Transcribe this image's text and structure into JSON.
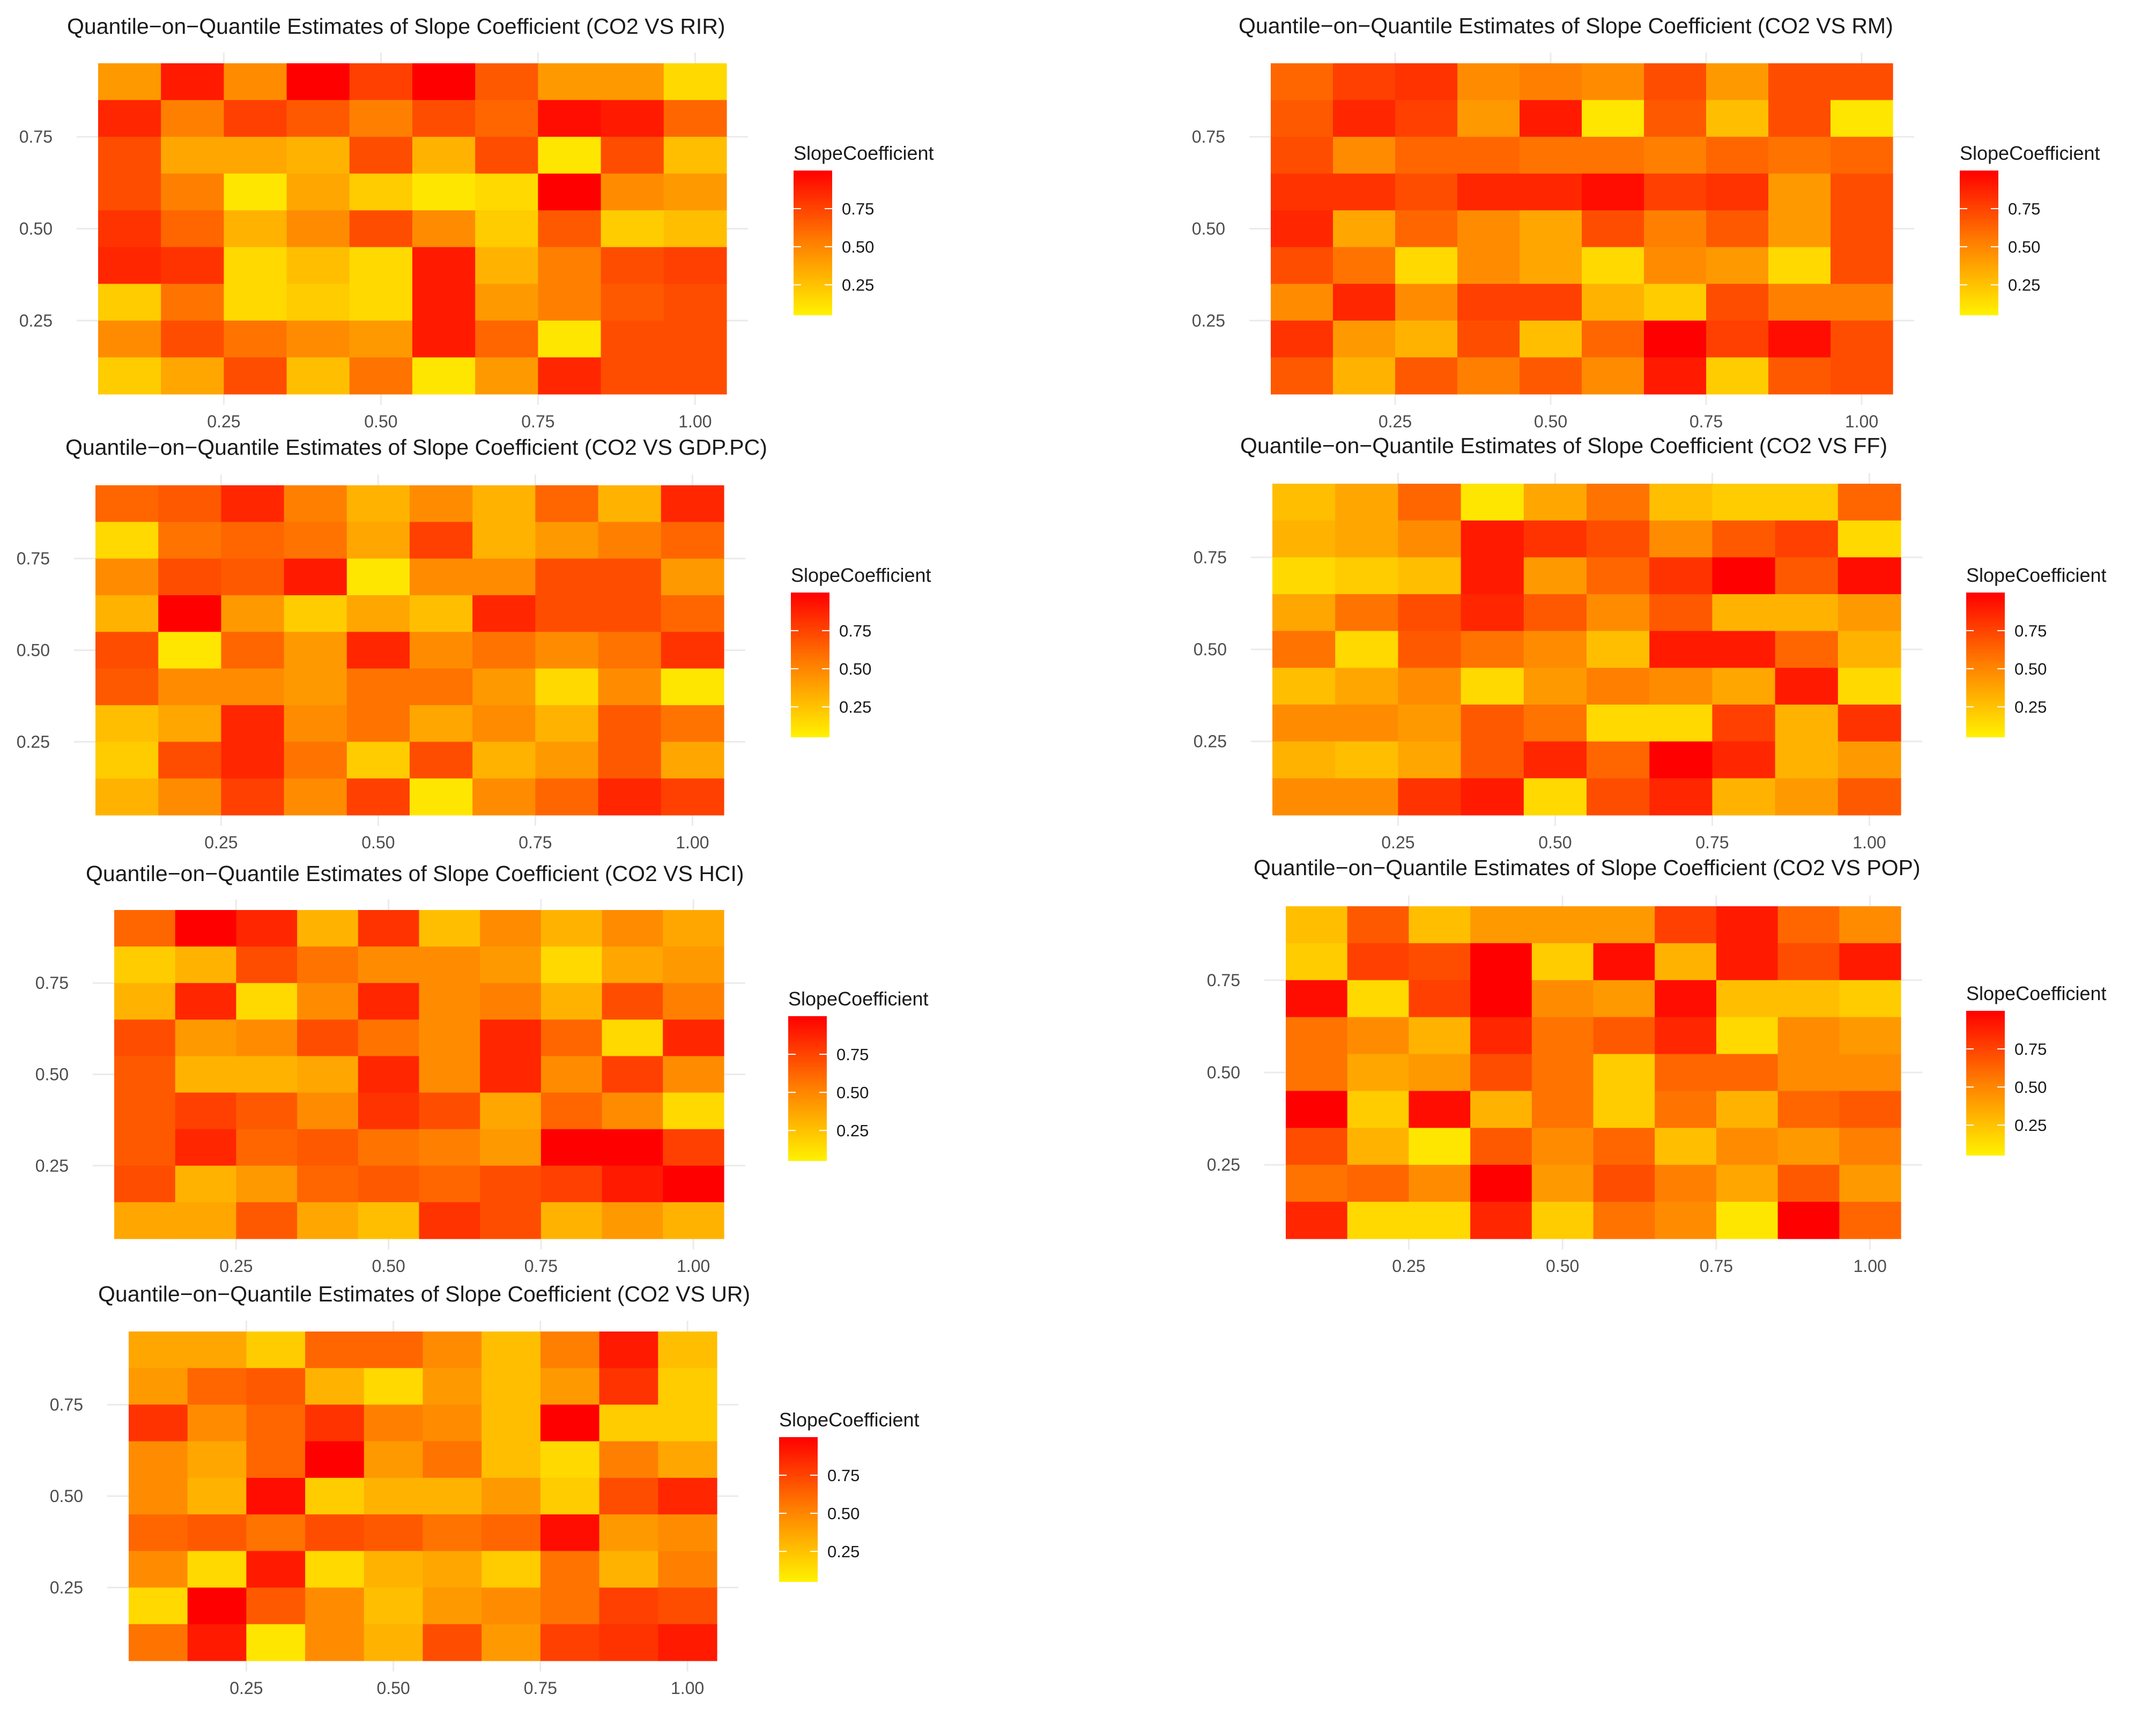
{
  "colors": {
    "low": "#FFFF00",
    "high": "#FF0000",
    "grid": "#EBEBEB",
    "text": "#1a1a1a",
    "tick": "#4d4d4d"
  },
  "chart_data": [
    {
      "type": "heatmap",
      "title": "Quantile−on−Quantile Estimates of Slope Coefficient (CO2 VS RIR)",
      "legend_title": "SlopeCoefficient",
      "legend_ticks": [
        "0.25",
        "0.50",
        "0.75"
      ],
      "legend_placement": "right",
      "x_ticks": [
        "0.25",
        "0.50",
        "0.75",
        "1.00"
      ],
      "y_ticks": [
        "0.25",
        "0.50",
        "0.75"
      ],
      "fill_range": [
        0,
        1
      ],
      "values": [
        [
          0.4,
          0.9,
          0.45,
          1.0,
          0.75,
          1.0,
          0.65,
          0.4,
          0.4,
          0.15
        ],
        [
          0.85,
          0.5,
          0.75,
          0.65,
          0.5,
          0.7,
          0.6,
          0.95,
          0.9,
          0.6
        ],
        [
          0.7,
          0.35,
          0.35,
          0.3,
          0.7,
          0.3,
          0.7,
          0.1,
          0.7,
          0.25
        ],
        [
          0.7,
          0.5,
          0.1,
          0.35,
          0.2,
          0.1,
          0.15,
          1.0,
          0.45,
          0.4
        ],
        [
          0.8,
          0.6,
          0.3,
          0.45,
          0.7,
          0.45,
          0.2,
          0.65,
          0.2,
          0.25
        ],
        [
          0.85,
          0.8,
          0.15,
          0.25,
          0.15,
          0.9,
          0.3,
          0.5,
          0.7,
          0.75
        ],
        [
          0.2,
          0.55,
          0.15,
          0.2,
          0.15,
          0.9,
          0.4,
          0.5,
          0.65,
          0.7
        ],
        [
          0.45,
          0.7,
          0.55,
          0.45,
          0.4,
          0.9,
          0.6,
          0.1,
          0.7,
          0.7
        ],
        [
          0.2,
          0.35,
          0.7,
          0.25,
          0.55,
          0.1,
          0.4,
          0.85,
          0.7,
          0.7
        ]
      ]
    },
    {
      "type": "heatmap",
      "title": "Quantile−on−Quantile Estimates of Slope Coefficient (CO2 VS RM)",
      "legend_title": "SlopeCoefficient",
      "legend_ticks": [
        "0.25",
        "0.50",
        "0.75"
      ],
      "legend_placement": "right",
      "x_ticks": [
        "0.25",
        "0.50",
        "0.75",
        "1.00"
      ],
      "y_ticks": [
        "0.25",
        "0.50",
        "0.75"
      ],
      "fill_range": [
        0,
        1
      ],
      "values": [
        [
          0.6,
          0.75,
          0.8,
          0.45,
          0.5,
          0.45,
          0.7,
          0.4,
          0.7,
          0.7
        ],
        [
          0.65,
          0.85,
          0.75,
          0.4,
          0.9,
          0.1,
          0.65,
          0.25,
          0.7,
          0.1
        ],
        [
          0.7,
          0.45,
          0.6,
          0.6,
          0.55,
          0.55,
          0.5,
          0.6,
          0.55,
          0.6
        ],
        [
          0.8,
          0.8,
          0.7,
          0.85,
          0.85,
          0.95,
          0.75,
          0.8,
          0.4,
          0.7
        ],
        [
          0.85,
          0.35,
          0.6,
          0.45,
          0.35,
          0.7,
          0.5,
          0.65,
          0.4,
          0.7
        ],
        [
          0.7,
          0.55,
          0.15,
          0.45,
          0.35,
          0.15,
          0.45,
          0.4,
          0.15,
          0.7
        ],
        [
          0.45,
          0.85,
          0.45,
          0.75,
          0.75,
          0.3,
          0.2,
          0.7,
          0.5,
          0.5
        ],
        [
          0.8,
          0.4,
          0.3,
          0.7,
          0.25,
          0.6,
          1.0,
          0.75,
          0.95,
          0.7
        ],
        [
          0.65,
          0.3,
          0.65,
          0.5,
          0.65,
          0.45,
          0.9,
          0.2,
          0.65,
          0.7
        ]
      ]
    },
    {
      "type": "heatmap",
      "title": "Quantile−on−Quantile Estimates of Slope Coefficient (CO2 VS GDP.PC)",
      "legend_title": "SlopeCoefficient",
      "legend_ticks": [
        "0.25",
        "0.50",
        "0.75"
      ],
      "legend_placement": "right",
      "x_ticks": [
        "0.25",
        "0.50",
        "0.75",
        "1.00"
      ],
      "y_ticks": [
        "0.25",
        "0.50",
        "0.75"
      ],
      "fill_range": [
        0,
        1
      ],
      "values": [
        [
          0.6,
          0.65,
          0.85,
          0.5,
          0.3,
          0.45,
          0.3,
          0.6,
          0.3,
          0.85
        ],
        [
          0.15,
          0.55,
          0.6,
          0.55,
          0.35,
          0.75,
          0.3,
          0.4,
          0.5,
          0.6
        ],
        [
          0.45,
          0.7,
          0.65,
          0.9,
          0.1,
          0.45,
          0.45,
          0.7,
          0.7,
          0.4
        ],
        [
          0.3,
          1.0,
          0.4,
          0.2,
          0.35,
          0.25,
          0.85,
          0.7,
          0.7,
          0.6
        ],
        [
          0.7,
          0.1,
          0.6,
          0.4,
          0.85,
          0.45,
          0.55,
          0.45,
          0.55,
          0.8
        ],
        [
          0.65,
          0.45,
          0.45,
          0.4,
          0.55,
          0.55,
          0.4,
          0.15,
          0.45,
          0.1
        ],
        [
          0.25,
          0.35,
          0.85,
          0.45,
          0.55,
          0.35,
          0.45,
          0.3,
          0.65,
          0.55
        ],
        [
          0.2,
          0.7,
          0.85,
          0.55,
          0.2,
          0.7,
          0.3,
          0.4,
          0.65,
          0.35
        ],
        [
          0.3,
          0.45,
          0.75,
          0.45,
          0.75,
          0.1,
          0.45,
          0.6,
          0.85,
          0.75
        ]
      ]
    },
    {
      "type": "heatmap",
      "title": "Quantile−on−Quantile Estimates of Slope Coefficient (CO2 VS FF)",
      "legend_title": "SlopeCoefficient",
      "legend_ticks": [
        "0.25",
        "0.50",
        "0.75"
      ],
      "legend_placement": "right",
      "x_ticks": [
        "0.25",
        "0.50",
        "0.75",
        "1.00"
      ],
      "y_ticks": [
        "0.25",
        "0.50",
        "0.75"
      ],
      "fill_range": [
        0,
        1
      ],
      "values": [
        [
          0.25,
          0.35,
          0.6,
          0.1,
          0.35,
          0.55,
          0.25,
          0.2,
          0.2,
          0.6
        ],
        [
          0.3,
          0.35,
          0.45,
          0.9,
          0.8,
          0.7,
          0.45,
          0.65,
          0.75,
          0.15
        ],
        [
          0.15,
          0.2,
          0.25,
          0.9,
          0.4,
          0.6,
          0.8,
          1.0,
          0.65,
          0.95
        ],
        [
          0.35,
          0.55,
          0.7,
          0.85,
          0.65,
          0.45,
          0.65,
          0.3,
          0.3,
          0.4
        ],
        [
          0.55,
          0.15,
          0.65,
          0.55,
          0.45,
          0.25,
          0.9,
          0.9,
          0.6,
          0.3
        ],
        [
          0.25,
          0.35,
          0.45,
          0.15,
          0.4,
          0.5,
          0.45,
          0.35,
          0.9,
          0.15
        ],
        [
          0.45,
          0.45,
          0.4,
          0.65,
          0.55,
          0.15,
          0.15,
          0.75,
          0.3,
          0.8
        ],
        [
          0.3,
          0.25,
          0.35,
          0.65,
          0.85,
          0.6,
          1.0,
          0.85,
          0.3,
          0.4
        ],
        [
          0.45,
          0.45,
          0.8,
          0.9,
          0.15,
          0.7,
          0.85,
          0.3,
          0.4,
          0.65
        ]
      ]
    },
    {
      "type": "heatmap",
      "title": "Quantile−on−Quantile Estimates of Slope Coefficient (CO2 VS HCI)",
      "legend_title": "SlopeCoefficient",
      "legend_ticks": [
        "0.25",
        "0.50",
        "0.75"
      ],
      "legend_placement": "right",
      "x_ticks": [
        "0.25",
        "0.50",
        "0.75",
        "1.00"
      ],
      "y_ticks": [
        "0.25",
        "0.50",
        "0.75"
      ],
      "fill_range": [
        0,
        1
      ],
      "values": [
        [
          0.6,
          1.0,
          0.85,
          0.3,
          0.8,
          0.25,
          0.45,
          0.3,
          0.45,
          0.35
        ],
        [
          0.2,
          0.3,
          0.7,
          0.55,
          0.45,
          0.45,
          0.4,
          0.15,
          0.35,
          0.4
        ],
        [
          0.3,
          0.85,
          0.15,
          0.45,
          0.85,
          0.45,
          0.5,
          0.3,
          0.7,
          0.5
        ],
        [
          0.7,
          0.4,
          0.45,
          0.7,
          0.55,
          0.45,
          0.85,
          0.6,
          0.15,
          0.85
        ],
        [
          0.65,
          0.3,
          0.3,
          0.35,
          0.85,
          0.45,
          0.85,
          0.45,
          0.75,
          0.45
        ],
        [
          0.65,
          0.75,
          0.65,
          0.45,
          0.8,
          0.7,
          0.35,
          0.6,
          0.45,
          0.15
        ],
        [
          0.65,
          0.85,
          0.6,
          0.65,
          0.55,
          0.5,
          0.4,
          1.0,
          1.0,
          0.75
        ],
        [
          0.7,
          0.3,
          0.4,
          0.6,
          0.65,
          0.6,
          0.7,
          0.75,
          0.9,
          1.0
        ],
        [
          0.35,
          0.35,
          0.65,
          0.35,
          0.25,
          0.8,
          0.7,
          0.3,
          0.4,
          0.3
        ]
      ]
    },
    {
      "type": "heatmap",
      "title": "Quantile−on−Quantile Estimates of Slope Coefficient (CO2 VS POP)",
      "legend_title": "SlopeCoefficient",
      "legend_ticks": [
        "0.25",
        "0.50",
        "0.75"
      ],
      "legend_placement": "right",
      "x_ticks": [
        "0.25",
        "0.50",
        "0.75",
        "1.00"
      ],
      "y_ticks": [
        "0.25",
        "0.50",
        "0.75"
      ],
      "fill_range": [
        0,
        1
      ],
      "values": [
        [
          0.25,
          0.65,
          0.25,
          0.4,
          0.4,
          0.4,
          0.75,
          0.9,
          0.6,
          0.45
        ],
        [
          0.2,
          0.75,
          0.7,
          1.0,
          0.2,
          0.95,
          0.3,
          0.9,
          0.7,
          0.9
        ],
        [
          0.95,
          0.15,
          0.75,
          1.0,
          0.45,
          0.4,
          0.95,
          0.25,
          0.25,
          0.2
        ],
        [
          0.55,
          0.45,
          0.3,
          0.85,
          0.55,
          0.65,
          0.85,
          0.15,
          0.45,
          0.4
        ],
        [
          0.55,
          0.35,
          0.4,
          0.7,
          0.55,
          0.2,
          0.6,
          0.6,
          0.45,
          0.45
        ],
        [
          1.0,
          0.2,
          0.95,
          0.3,
          0.55,
          0.2,
          0.55,
          0.3,
          0.6,
          0.65
        ],
        [
          0.7,
          0.3,
          0.1,
          0.65,
          0.45,
          0.6,
          0.25,
          0.45,
          0.4,
          0.5
        ],
        [
          0.55,
          0.6,
          0.45,
          1.0,
          0.4,
          0.7,
          0.5,
          0.35,
          0.65,
          0.4
        ],
        [
          0.85,
          0.15,
          0.15,
          0.85,
          0.2,
          0.55,
          0.45,
          0.1,
          1.0,
          0.6
        ]
      ]
    },
    {
      "type": "heatmap",
      "title": "Quantile−on−Quantile Estimates of Slope Coefficient (CO2 VS UR)",
      "legend_title": "SlopeCoefficient",
      "legend_ticks": [
        "0.25",
        "0.50",
        "0.75"
      ],
      "legend_placement": "right",
      "x_ticks": [
        "0.25",
        "0.50",
        "0.75",
        "1.00"
      ],
      "y_ticks": [
        "0.25",
        "0.50",
        "0.75"
      ],
      "fill_range": [
        0,
        1
      ],
      "values": [
        [
          0.35,
          0.35,
          0.2,
          0.6,
          0.6,
          0.45,
          0.25,
          0.5,
          0.9,
          0.25
        ],
        [
          0.4,
          0.6,
          0.65,
          0.3,
          0.15,
          0.4,
          0.25,
          0.4,
          0.8,
          0.2
        ],
        [
          0.8,
          0.45,
          0.6,
          0.8,
          0.5,
          0.45,
          0.25,
          1.0,
          0.2,
          0.2
        ],
        [
          0.45,
          0.35,
          0.6,
          1.0,
          0.4,
          0.55,
          0.25,
          0.15,
          0.5,
          0.35
        ],
        [
          0.45,
          0.3,
          0.95,
          0.2,
          0.3,
          0.3,
          0.4,
          0.2,
          0.7,
          0.85
        ],
        [
          0.6,
          0.65,
          0.55,
          0.7,
          0.65,
          0.55,
          0.6,
          0.95,
          0.4,
          0.45
        ],
        [
          0.45,
          0.15,
          0.9,
          0.15,
          0.3,
          0.35,
          0.2,
          0.55,
          0.3,
          0.5
        ],
        [
          0.15,
          1.0,
          0.65,
          0.45,
          0.25,
          0.4,
          0.45,
          0.55,
          0.75,
          0.7
        ],
        [
          0.55,
          0.9,
          0.1,
          0.45,
          0.3,
          0.7,
          0.4,
          0.75,
          0.8,
          0.9
        ]
      ]
    }
  ]
}
